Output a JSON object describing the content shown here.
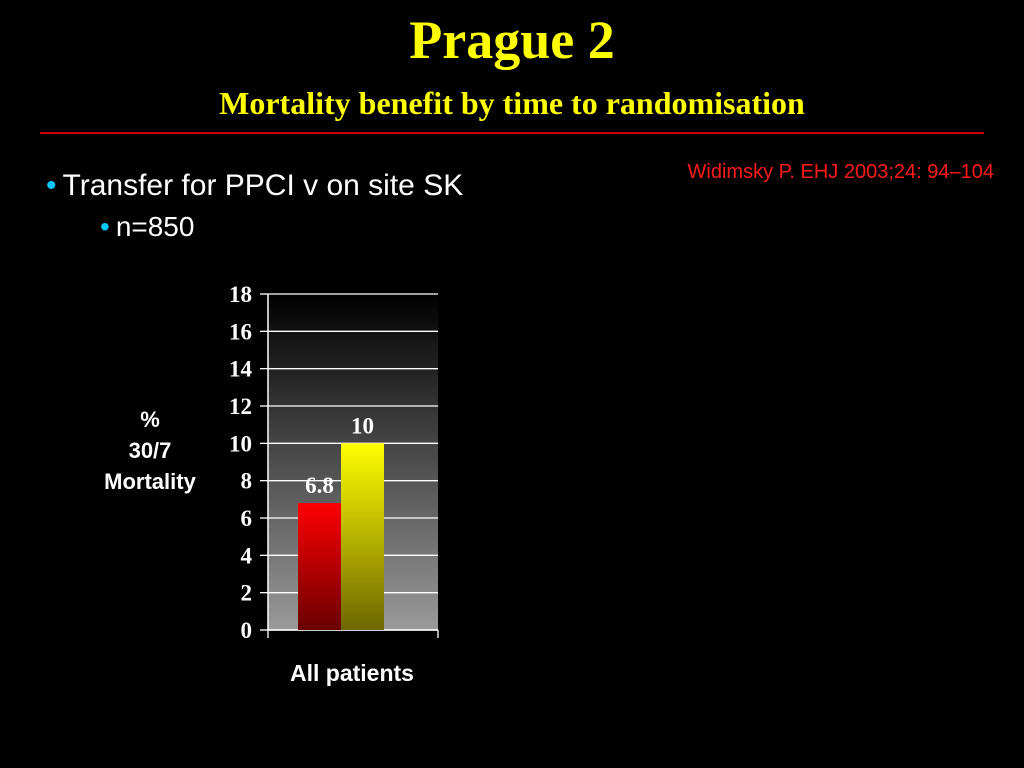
{
  "slide": {
    "title": "Prague 2",
    "subtitle": "Mortality benefit by time to randomisation",
    "citation": "Widimsky P. EHJ 2003;24: 94–104",
    "bullets": [
      {
        "text": "Transfer for PPCI v on site SK",
        "level": 1
      },
      {
        "text": "n=850",
        "level": 2
      }
    ],
    "bullet_glyph": "•",
    "colors": {
      "background": "#000000",
      "title": "#ffff00",
      "rule": "#cc0000",
      "citation": "#ff1a1a",
      "bullet": "#00c8ff"
    }
  },
  "chart_data": {
    "type": "bar",
    "categories": [
      "All patients"
    ],
    "series": [
      {
        "values": [
          6.8
        ],
        "color": "#ff0000",
        "data_label": "6.8"
      },
      {
        "values": [
          10
        ],
        "color": "#ffff00",
        "data_label": "10"
      }
    ],
    "ylabel_lines": [
      "%",
      "30/7",
      "Mortality"
    ],
    "ylim": [
      0,
      18
    ],
    "yticks": [
      "0",
      "2",
      "4",
      "6",
      "8",
      "10",
      "12",
      "14",
      "16",
      "18"
    ],
    "grid": true,
    "legend": "none"
  }
}
